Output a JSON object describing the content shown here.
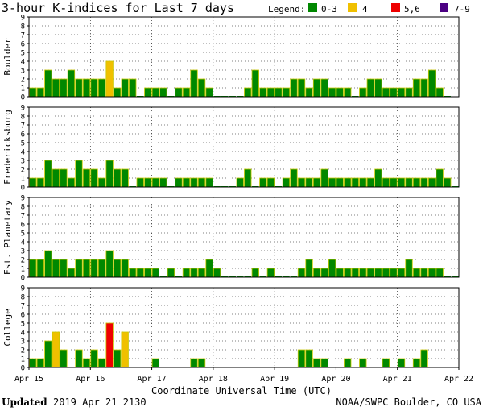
{
  "title": "3-hour K-indices for Last 7 days",
  "legend": {
    "label": "Legend:",
    "items": [
      {
        "label": "0-3",
        "color": "#008800"
      },
      {
        "label": "4",
        "color": "#f0c000"
      },
      {
        "label": "5,6",
        "color": "#ee0000"
      },
      {
        "label": "7-9",
        "color": "#4b0082"
      }
    ]
  },
  "footer": {
    "updated_label": "Updated",
    "updated_value": "2019 Apr 21 2130",
    "credit": "NOAA/SWPC Boulder, CO USA"
  },
  "chart_data": {
    "type": "bar",
    "xlabel": "Coordinate Universal Time (UTC)",
    "x_ticks": [
      "Apr 15",
      "Apr 16",
      "Apr 17",
      "Apr 18",
      "Apr 19",
      "Apr 20",
      "Apr 21",
      "Apr 22"
    ],
    "ylim": [
      0,
      9
    ],
    "y_ticks": [
      "0",
      "1",
      "2",
      "3",
      "4",
      "5",
      "6",
      "7",
      "8",
      "9"
    ],
    "series": [
      {
        "name": "Boulder",
        "values": [
          1,
          1,
          3,
          2,
          2,
          3,
          2,
          2,
          2,
          2,
          4,
          1,
          2,
          2,
          0,
          1,
          1,
          1,
          0,
          1,
          1,
          3,
          2,
          1,
          0,
          0,
          0,
          0,
          1,
          3,
          1,
          1,
          1,
          1,
          2,
          2,
          1,
          2,
          2,
          1,
          1,
          1,
          0,
          1,
          2,
          2,
          1,
          1,
          1,
          1,
          2,
          2,
          3,
          1,
          0
        ]
      },
      {
        "name": "Fredericksburg",
        "values": [
          1,
          1,
          3,
          2,
          2,
          1,
          3,
          2,
          2,
          1,
          3,
          2,
          2,
          0,
          1,
          1,
          1,
          1,
          0,
          1,
          1,
          1,
          1,
          1,
          0,
          0,
          0,
          1,
          2,
          0,
          1,
          1,
          0,
          1,
          2,
          1,
          1,
          1,
          2,
          1,
          1,
          1,
          1,
          1,
          1,
          2,
          1,
          1,
          1,
          1,
          1,
          1,
          1,
          2,
          1,
          0
        ]
      },
      {
        "name": "Est. Planetary",
        "values": [
          2,
          2,
          3,
          2,
          2,
          1,
          2,
          2,
          2,
          2,
          3,
          2,
          2,
          1,
          1,
          1,
          1,
          0,
          1,
          0,
          1,
          1,
          1,
          2,
          1,
          0,
          0,
          0,
          0,
          1,
          0,
          1,
          0,
          0,
          0,
          1,
          2,
          1,
          1,
          2,
          1,
          1,
          1,
          1,
          1,
          1,
          1,
          1,
          1,
          2,
          1,
          1,
          1,
          1,
          0,
          0
        ]
      },
      {
        "name": "College",
        "values": [
          1,
          1,
          3,
          4,
          2,
          0,
          2,
          1,
          2,
          1,
          5,
          2,
          4,
          0,
          0,
          0,
          1,
          0,
          0,
          0,
          0,
          1,
          1,
          0,
          0,
          0,
          0,
          0,
          0,
          0,
          0,
          0,
          0,
          0,
          0,
          2,
          2,
          1,
          1,
          0,
          0,
          1,
          0,
          1,
          0,
          0,
          1,
          0,
          1,
          0,
          1,
          2,
          0,
          0,
          0,
          0
        ]
      }
    ]
  }
}
